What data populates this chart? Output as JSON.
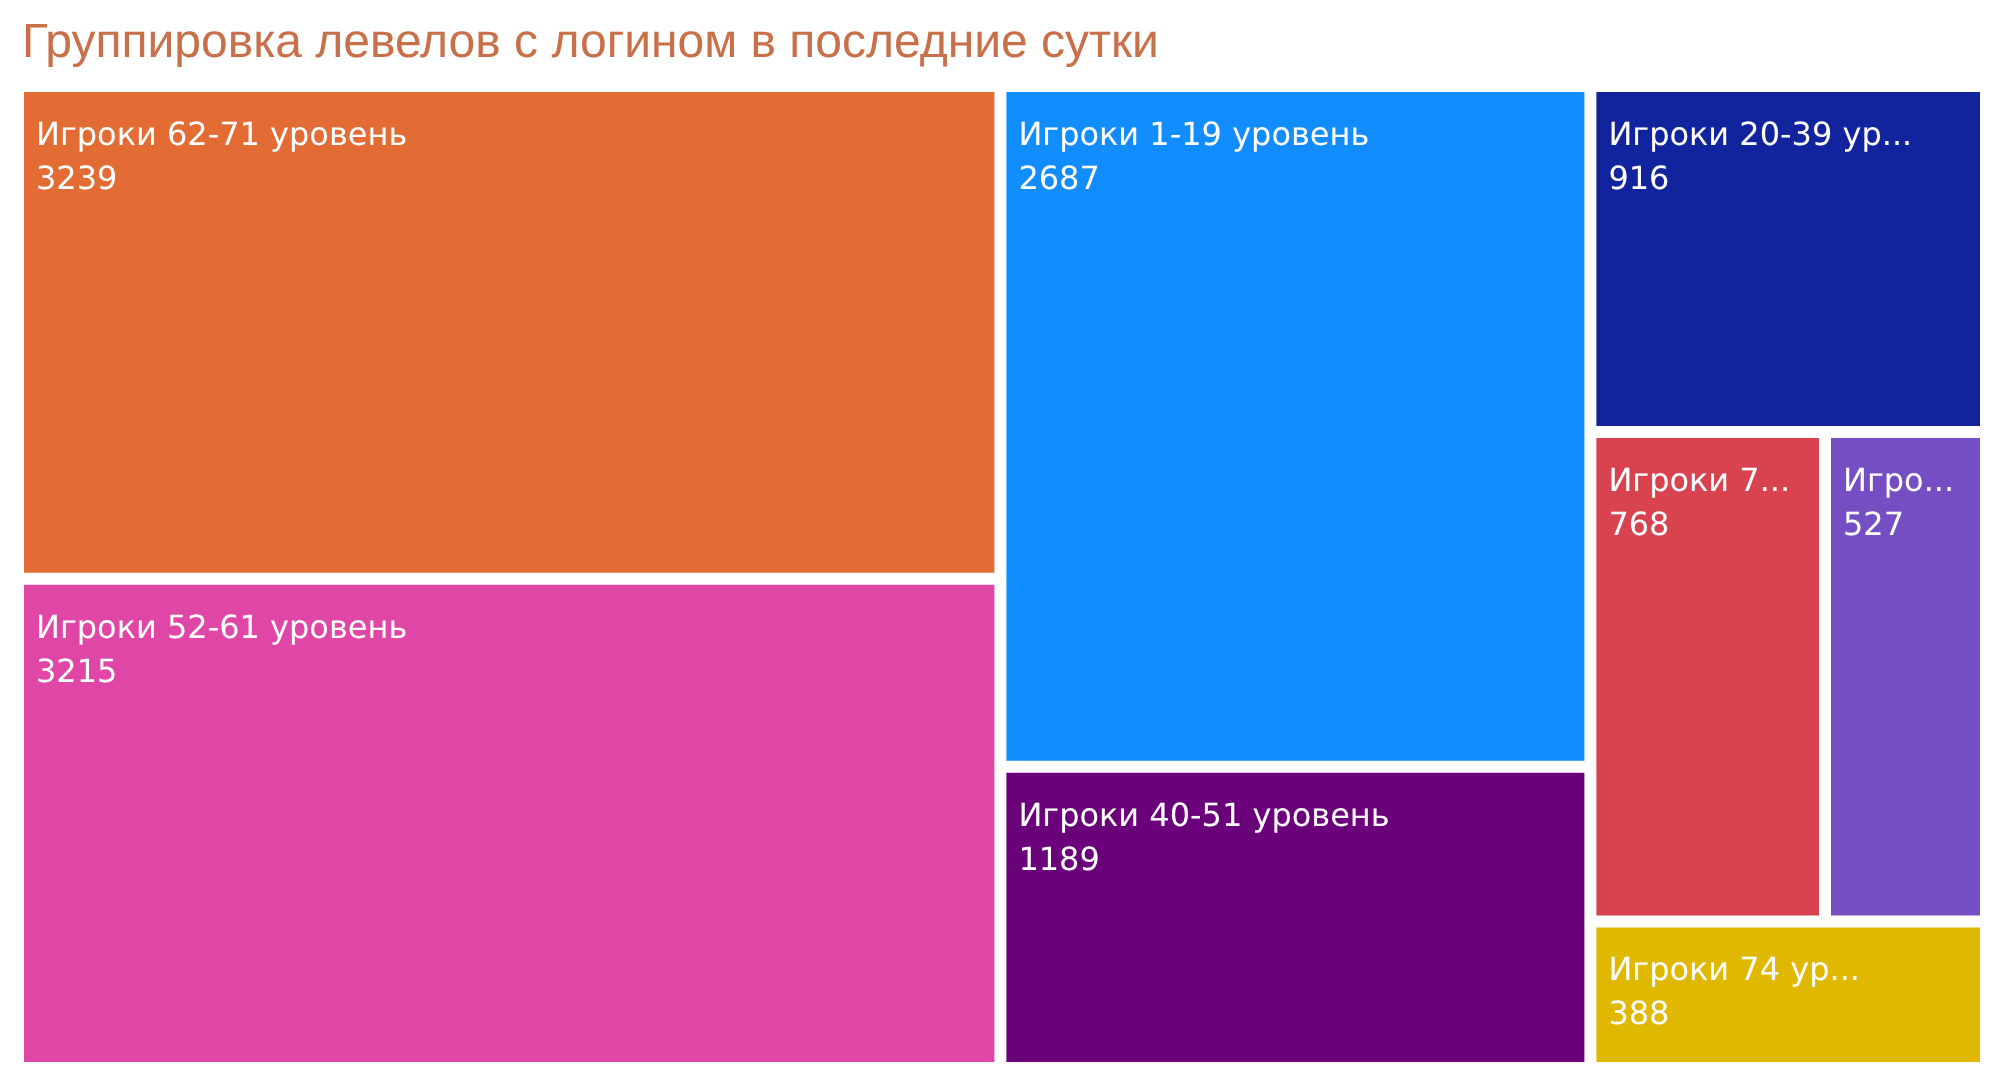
{
  "chart_data": {
    "type": "other",
    "title": "Группировка левелов с логином в последние сутки",
    "categories": [
      "Игроки 62-71 уровень",
      "Игроки 52-61 уровень",
      "Игроки 1-19 уровень",
      "Игроки 40-51 уровень",
      "Игроки 20-39 ур...",
      "Игроки 7...",
      "Игро...",
      "Игроки 74 ур..."
    ],
    "values": [
      3239,
      3215,
      2687,
      1189,
      916,
      768,
      527,
      388
    ],
    "colors": [
      "#e36c35",
      "#df46a6",
      "#118dff",
      "#6b007b",
      "#12239e",
      "#d9434f",
      "#744ec2",
      "#e0b800"
    ],
    "data_labels": true
  }
}
